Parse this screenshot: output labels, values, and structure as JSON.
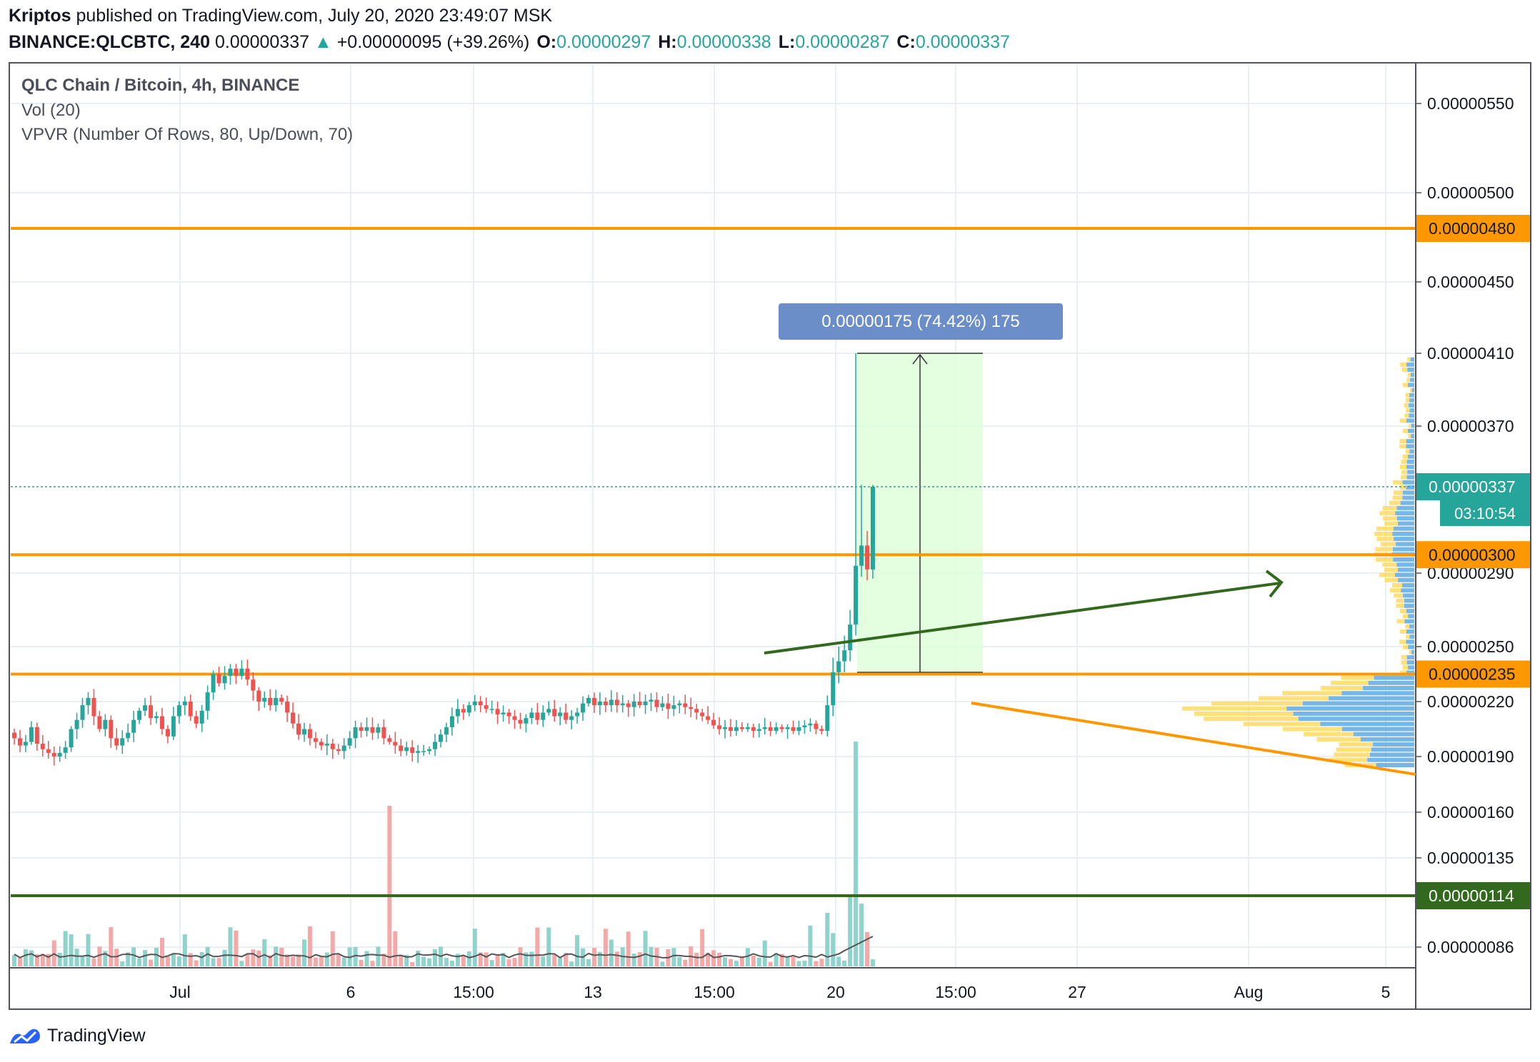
{
  "header": {
    "author": "Kriptos",
    "published_text": "published on TradingView.com, July 20, 2020 23:49:07 MSK",
    "symbol": "BINANCE:QLCBTC, 240",
    "last": "0.00000337",
    "change": "+0.00000095 (+39.26%)",
    "o_label": "O:",
    "o": "0.00000297",
    "h_label": "H:",
    "h": "0.00000338",
    "l_label": "L:",
    "l": "0.00000287",
    "c_label": "C:",
    "c": "0.00000337"
  },
  "legend": {
    "title": "QLC Chain / Bitcoin, 4h, BINANCE",
    "vol": "Vol (20)",
    "vpvr": "VPVR (Number Of Rows, 80, Up/Down, 70)"
  },
  "measure_label": "0.00000175 (74.42%) 175",
  "countdown": "03:10:54",
  "footer": {
    "brand": "TradingView"
  },
  "colors": {
    "up": "#26a69a",
    "down": "#ef5350",
    "level": "#ff9800",
    "support": "#33691e",
    "grid": "#e1ecf2",
    "measure": "#6b8ec8",
    "measure_fill": "#dcffd8",
    "vpvr_up": "#ffd54f",
    "vpvr_down": "#4a9fe0"
  },
  "chart_data": {
    "type": "candlestick",
    "x_ticks": [
      "Jul",
      "6",
      "15:00",
      "13",
      "15:00",
      "20",
      "15:00",
      "27",
      "Aug",
      "5"
    ],
    "y_ticks": [
      "0.00000550",
      "0.00000500",
      "0.00000450",
      "0.00000410",
      "0.00000370",
      "0.00000290",
      "0.00000250",
      "0.00000220",
      "0.00000190",
      "0.00000160",
      "0.00000135",
      "0.00000086"
    ],
    "price_labels": [
      {
        "text": "0.00000480",
        "kind": "level"
      },
      {
        "text": "0.00000337",
        "kind": "last"
      },
      {
        "text": "0.00000300",
        "kind": "level"
      },
      {
        "text": "0.00000235",
        "kind": "level"
      },
      {
        "text": "0.00000114",
        "kind": "support"
      }
    ],
    "horizontal_levels": [
      4.8,
      3.0,
      2.35,
      1.14
    ],
    "last_price": 3.37,
    "price_unit_note": "prices shown x1e-6 BTC",
    "closes": [
      2.0,
      1.96,
      1.98,
      2.06,
      1.97,
      1.94,
      1.92,
      1.9,
      1.92,
      1.95,
      2.05,
      2.1,
      2.18,
      2.22,
      2.12,
      2.05,
      2.1,
      2.0,
      1.96,
      2.0,
      2.03,
      2.1,
      2.15,
      2.18,
      2.11,
      2.12,
      2.05,
      2.01,
      2.12,
      2.18,
      2.2,
      2.12,
      2.08,
      2.15,
      2.25,
      2.35,
      2.3,
      2.34,
      2.38,
      2.34,
      2.38,
      2.32,
      2.26,
      2.2,
      2.22,
      2.18,
      2.22,
      2.2,
      2.14,
      2.08,
      2.02,
      2.05,
      2.0,
      1.98,
      1.96,
      1.97,
      1.94,
      1.93,
      1.96,
      2.0,
      2.06,
      2.04,
      2.06,
      2.03,
      2.06,
      2.0,
      1.98,
      1.96,
      1.93,
      1.95,
      1.92,
      1.93,
      1.93,
      1.94,
      1.98,
      2.02,
      2.06,
      2.12,
      2.16,
      2.14,
      2.18,
      2.2,
      2.18,
      2.16,
      2.16,
      2.13,
      2.14,
      2.12,
      2.1,
      2.08,
      2.11,
      2.14,
      2.1,
      2.14,
      2.16,
      2.12,
      2.14,
      2.1,
      2.12,
      2.14,
      2.19,
      2.22,
      2.18,
      2.2,
      2.18,
      2.21,
      2.18,
      2.19,
      2.17,
      2.2,
      2.18,
      2.2,
      2.21,
      2.17,
      2.19,
      2.16,
      2.18,
      2.19,
      2.17,
      2.16,
      2.14,
      2.12,
      2.1,
      2.07,
      2.05,
      2.06,
      2.04,
      2.06,
      2.05,
      2.06,
      2.04,
      2.05,
      2.06,
      2.04,
      2.06,
      2.05,
      2.06,
      2.04,
      2.06,
      2.07,
      2.08,
      2.05,
      2.04,
      2.18,
      2.36,
      2.42,
      2.48,
      2.62,
      2.94,
      3.05,
      2.92,
      3.37
    ]
  }
}
